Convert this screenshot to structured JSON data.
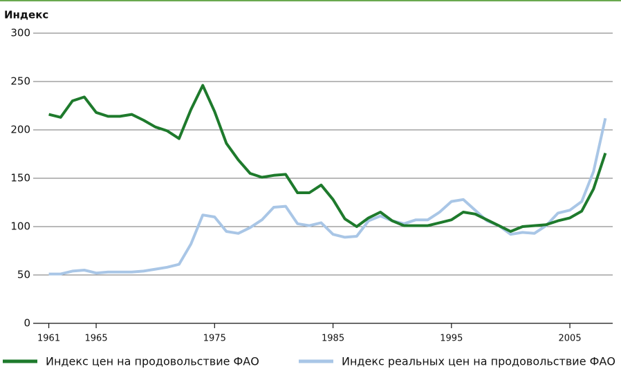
{
  "chart_data": {
    "type": "line",
    "y_label": "Индекс",
    "x": [
      1961,
      1962,
      1963,
      1964,
      1965,
      1966,
      1967,
      1968,
      1969,
      1970,
      1971,
      1972,
      1973,
      1974,
      1975,
      1976,
      1977,
      1978,
      1979,
      1980,
      1981,
      1982,
      1983,
      1984,
      1985,
      1986,
      1987,
      1988,
      1989,
      1990,
      1991,
      1992,
      1993,
      1994,
      1995,
      1996,
      1997,
      1998,
      1999,
      2000,
      2001,
      2002,
      2003,
      2004,
      2005,
      2006,
      2007,
      2008
    ],
    "series": [
      {
        "name": "Индекс цен на продовольствие ФАО",
        "color": "#1e7a2c",
        "values": [
          216,
          213,
          230,
          234,
          218,
          214,
          214,
          216,
          210,
          203,
          199,
          191,
          221,
          246,
          219,
          186,
          169,
          155,
          151,
          153,
          154,
          135,
          135,
          143,
          128,
          108,
          100,
          109,
          115,
          106,
          101,
          101,
          101,
          104,
          107,
          115,
          113,
          107,
          101,
          95,
          100,
          101,
          102,
          106,
          109,
          116,
          139,
          176
        ]
      },
      {
        "name": "Индекс реальных цен на продовольствие ФАО",
        "color": "#a9c6e6",
        "values": [
          51,
          51,
          54,
          55,
          52,
          53,
          53,
          53,
          54,
          56,
          58,
          61,
          82,
          112,
          110,
          95,
          93,
          99,
          107,
          120,
          121,
          103,
          101,
          104,
          92,
          89,
          90,
          106,
          111,
          106,
          103,
          107,
          107,
          115,
          126,
          128,
          117,
          106,
          101,
          92,
          94,
          93,
          101,
          114,
          117,
          126,
          157,
          212
        ]
      }
    ],
    "xlim": [
      1960.5,
      2008.5
    ],
    "xticks": [
      1961,
      1965,
      1975,
      1985,
      1995,
      2005
    ],
    "ylim": [
      0,
      300
    ],
    "yticks": [
      0,
      50,
      100,
      150,
      200,
      250,
      300
    ],
    "grid": true
  }
}
